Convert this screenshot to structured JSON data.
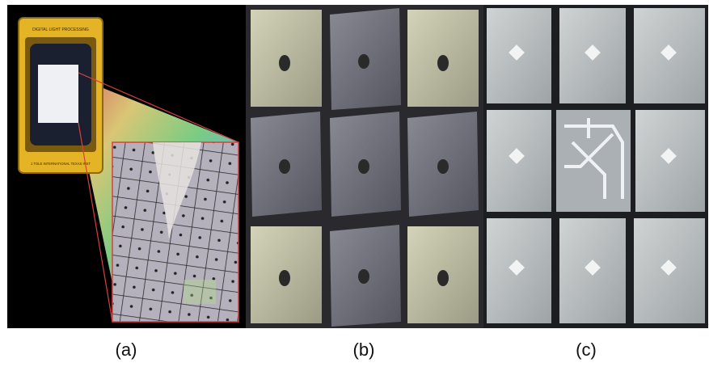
{
  "figure": {
    "panels": [
      {
        "id": "a",
        "caption": "(a)",
        "description_icon": "dmd-chip-with-magnified-mirror-array"
      },
      {
        "id": "b",
        "caption": "(b)",
        "description_icon": "tilted-micromirror-3x3-grid"
      },
      {
        "id": "c",
        "caption": "(c)",
        "description_icon": "micromirror-grid-center-removed"
      }
    ],
    "chip_label_top": "DIGITAL LIGHT PROCESSING",
    "chip_label_bottom": "1 TOLE INTERNATIONAL TEXAS INST",
    "colors": {
      "chip_gold": "#e4b326",
      "mirror_light": "#b7b9a6",
      "mirror_dark": "#6b6b75",
      "mirror_c": "#c3c8ca"
    }
  }
}
